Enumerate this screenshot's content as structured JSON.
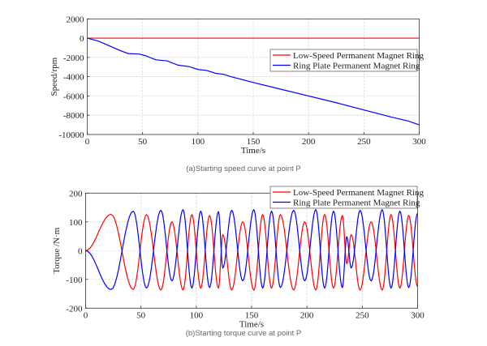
{
  "chart_data": [
    {
      "type": "line",
      "caption": "(a)Starting speed curve at point P",
      "xlabel": "Time/s",
      "ylabel": "Speed/rpm",
      "xlim": [
        0,
        300
      ],
      "ylim": [
        -10000,
        2000
      ],
      "xticks": [
        0,
        50,
        100,
        150,
        200,
        250,
        300
      ],
      "yticks": [
        2000,
        0,
        -2000,
        -4000,
        -6000,
        -8000,
        -10000
      ],
      "grid": true,
      "legend_position": "right",
      "series": [
        {
          "name": "Low-Speed Permanent Magnet Ring",
          "color": "#ff0000",
          "x": [
            0,
            300
          ],
          "y": [
            0,
            0
          ]
        },
        {
          "name": "Ring Plate Permanent Magnet Ring",
          "color": "#0000ff",
          "x": [
            0,
            10,
            20,
            30,
            37,
            47,
            52,
            62,
            72,
            82,
            92,
            100,
            108,
            116,
            123,
            130,
            140,
            150,
            175,
            200,
            225,
            250,
            275,
            290,
            300
          ],
          "y": [
            0,
            -300,
            -800,
            -1300,
            -1600,
            -1650,
            -1800,
            -2250,
            -2350,
            -2800,
            -2950,
            -3250,
            -3350,
            -3650,
            -3750,
            -4000,
            -4300,
            -4600,
            -5300,
            -6000,
            -6700,
            -7450,
            -8200,
            -8600,
            -9000
          ]
        }
      ]
    },
    {
      "type": "line",
      "caption": "(b)Starting torque curve at point P",
      "xlabel": "Time/s",
      "ylabel": "Torque /N·m",
      "xlim": [
        0,
        300
      ],
      "ylim": [
        -200,
        200
      ],
      "xticks": [
        0,
        50,
        100,
        150,
        200,
        250,
        300
      ],
      "yticks": [
        200,
        100,
        0,
        -100,
        -200
      ],
      "grid": true,
      "legend_position": "top-right",
      "series": [
        {
          "name": "Low-Speed Permanent Magnet Ring",
          "color": "#ff0000",
          "extrema_x": [
            0,
            23,
            43,
            55,
            68,
            78,
            88,
            96,
            104,
            112,
            120,
            124,
            132,
            142,
            152,
            160,
            168,
            176,
            188,
            198,
            208,
            216,
            224,
            232,
            236,
            240,
            248,
            258,
            268,
            276,
            284,
            292,
            300
          ],
          "extrema_y": [
            0,
            126,
            -135,
            125,
            -137,
            100,
            -137,
            125,
            -130,
            122,
            -130,
            55,
            -137,
            100,
            -137,
            125,
            -130,
            125,
            -137,
            100,
            -137,
            125,
            -130,
            122,
            -45,
            55,
            -137,
            100,
            -137,
            125,
            -130,
            122,
            -125
          ]
        },
        {
          "name": "Ring Plate Permanent Magnet Ring",
          "color": "#0000ff",
          "extrema_x": [
            0,
            23,
            43,
            55,
            68,
            78,
            88,
            96,
            104,
            112,
            120,
            124,
            132,
            142,
            152,
            160,
            168,
            176,
            188,
            198,
            208,
            216,
            224,
            232,
            236,
            240,
            248,
            258,
            268,
            276,
            284,
            292,
            300
          ],
          "extrema_y": [
            0,
            -135,
            137,
            -130,
            140,
            -105,
            142,
            -130,
            137,
            -128,
            135,
            -60,
            140,
            -105,
            142,
            -130,
            137,
            -128,
            140,
            -105,
            142,
            -130,
            137,
            -128,
            48,
            -60,
            140,
            -105,
            142,
            -130,
            137,
            -128,
            130
          ]
        }
      ]
    }
  ]
}
